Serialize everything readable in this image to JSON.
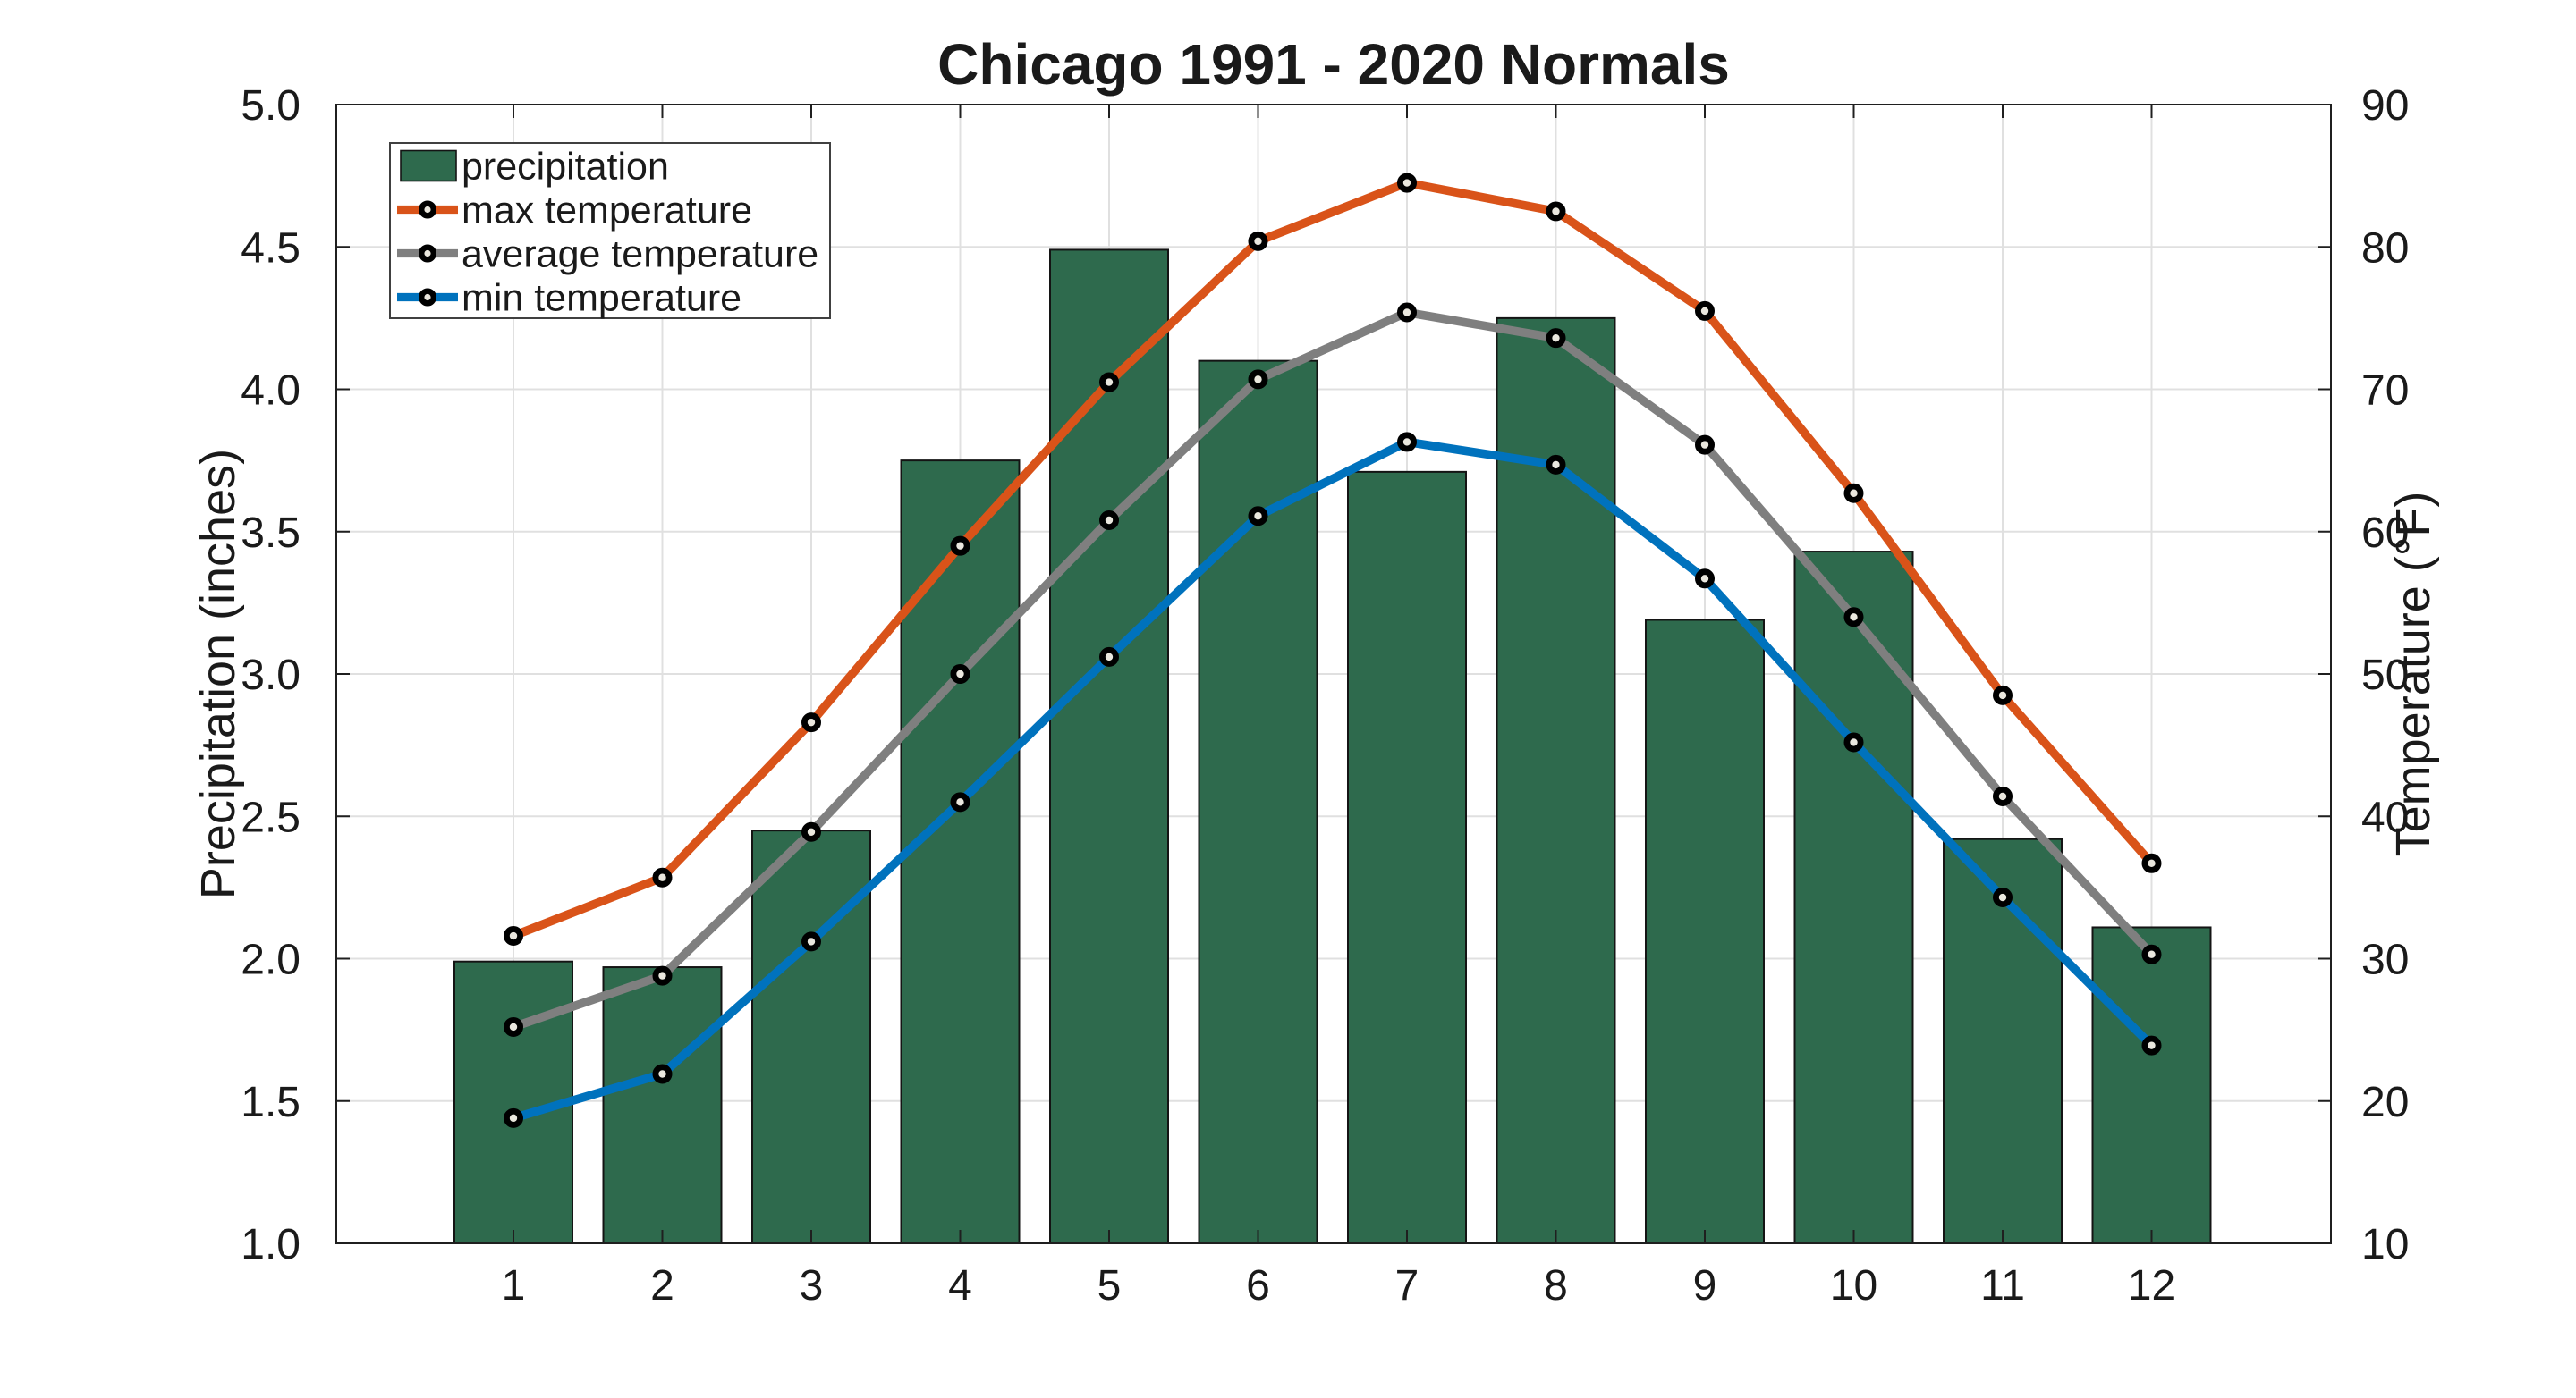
{
  "title": "Chicago 1991 - 2020 Normals",
  "chart_data": {
    "type": "combo-bar-line",
    "categories": [
      "1",
      "2",
      "3",
      "4",
      "5",
      "6",
      "7",
      "8",
      "9",
      "10",
      "11",
      "12"
    ],
    "bar_series": {
      "name": "precipitation",
      "color": "#2E6A4D",
      "edge_color": "#141414",
      "values": [
        1.99,
        1.97,
        2.45,
        3.75,
        4.49,
        4.1,
        3.71,
        4.25,
        3.19,
        3.43,
        2.42,
        2.11
      ]
    },
    "line_series": [
      {
        "name": "max temperature",
        "color": "#D95319",
        "values": [
          31.6,
          35.7,
          46.6,
          59.0,
          70.5,
          80.4,
          84.5,
          82.5,
          75.5,
          62.7,
          48.5,
          36.7
        ]
      },
      {
        "name": "average temperature",
        "color": "#7F7F7F",
        "values": [
          25.2,
          28.8,
          38.9,
          50.0,
          60.8,
          70.7,
          75.4,
          73.6,
          66.1,
          54.0,
          41.4,
          30.3
        ]
      },
      {
        "name": "min temperature",
        "color": "#0072BD",
        "values": [
          18.8,
          21.9,
          31.2,
          41.0,
          51.2,
          61.1,
          66.3,
          64.7,
          56.7,
          45.2,
          34.3,
          23.9
        ]
      }
    ],
    "marker": {
      "shape": "circle",
      "face_color": "#EAE7DE",
      "edge_color": "#000000"
    },
    "left_axis": {
      "label": "Precipitation (inches)",
      "lim": [
        1.0,
        5.0
      ],
      "tick_values": [
        1.0,
        1.5,
        2.0,
        2.5,
        3.0,
        3.5,
        4.0,
        4.5,
        5.0
      ],
      "tick_labels": [
        "1.0",
        "1.5",
        "2.0",
        "2.5",
        "3.0",
        "3.5",
        "4.0",
        "4.5",
        "5.0"
      ]
    },
    "right_axis": {
      "label": "Temperature (°F)",
      "lim": [
        10,
        90
      ],
      "tick_values": [
        10,
        20,
        30,
        40,
        50,
        60,
        70,
        80,
        90
      ],
      "tick_labels": [
        "10",
        "20",
        "30",
        "40",
        "50",
        "60",
        "70",
        "80",
        "90"
      ]
    },
    "x_axis": {
      "tick_labels": [
        "1",
        "2",
        "3",
        "4",
        "5",
        "6",
        "7",
        "8",
        "9",
        "10",
        "11",
        "12"
      ]
    },
    "grid": true,
    "grid_color": "#E0E0E0",
    "frame_color": "#1f1f1f",
    "background": "#FFFFFF",
    "legend": {
      "position": "upper-left",
      "entries": [
        "precipitation",
        "max temperature",
        "average temperature",
        "min temperature"
      ]
    }
  }
}
